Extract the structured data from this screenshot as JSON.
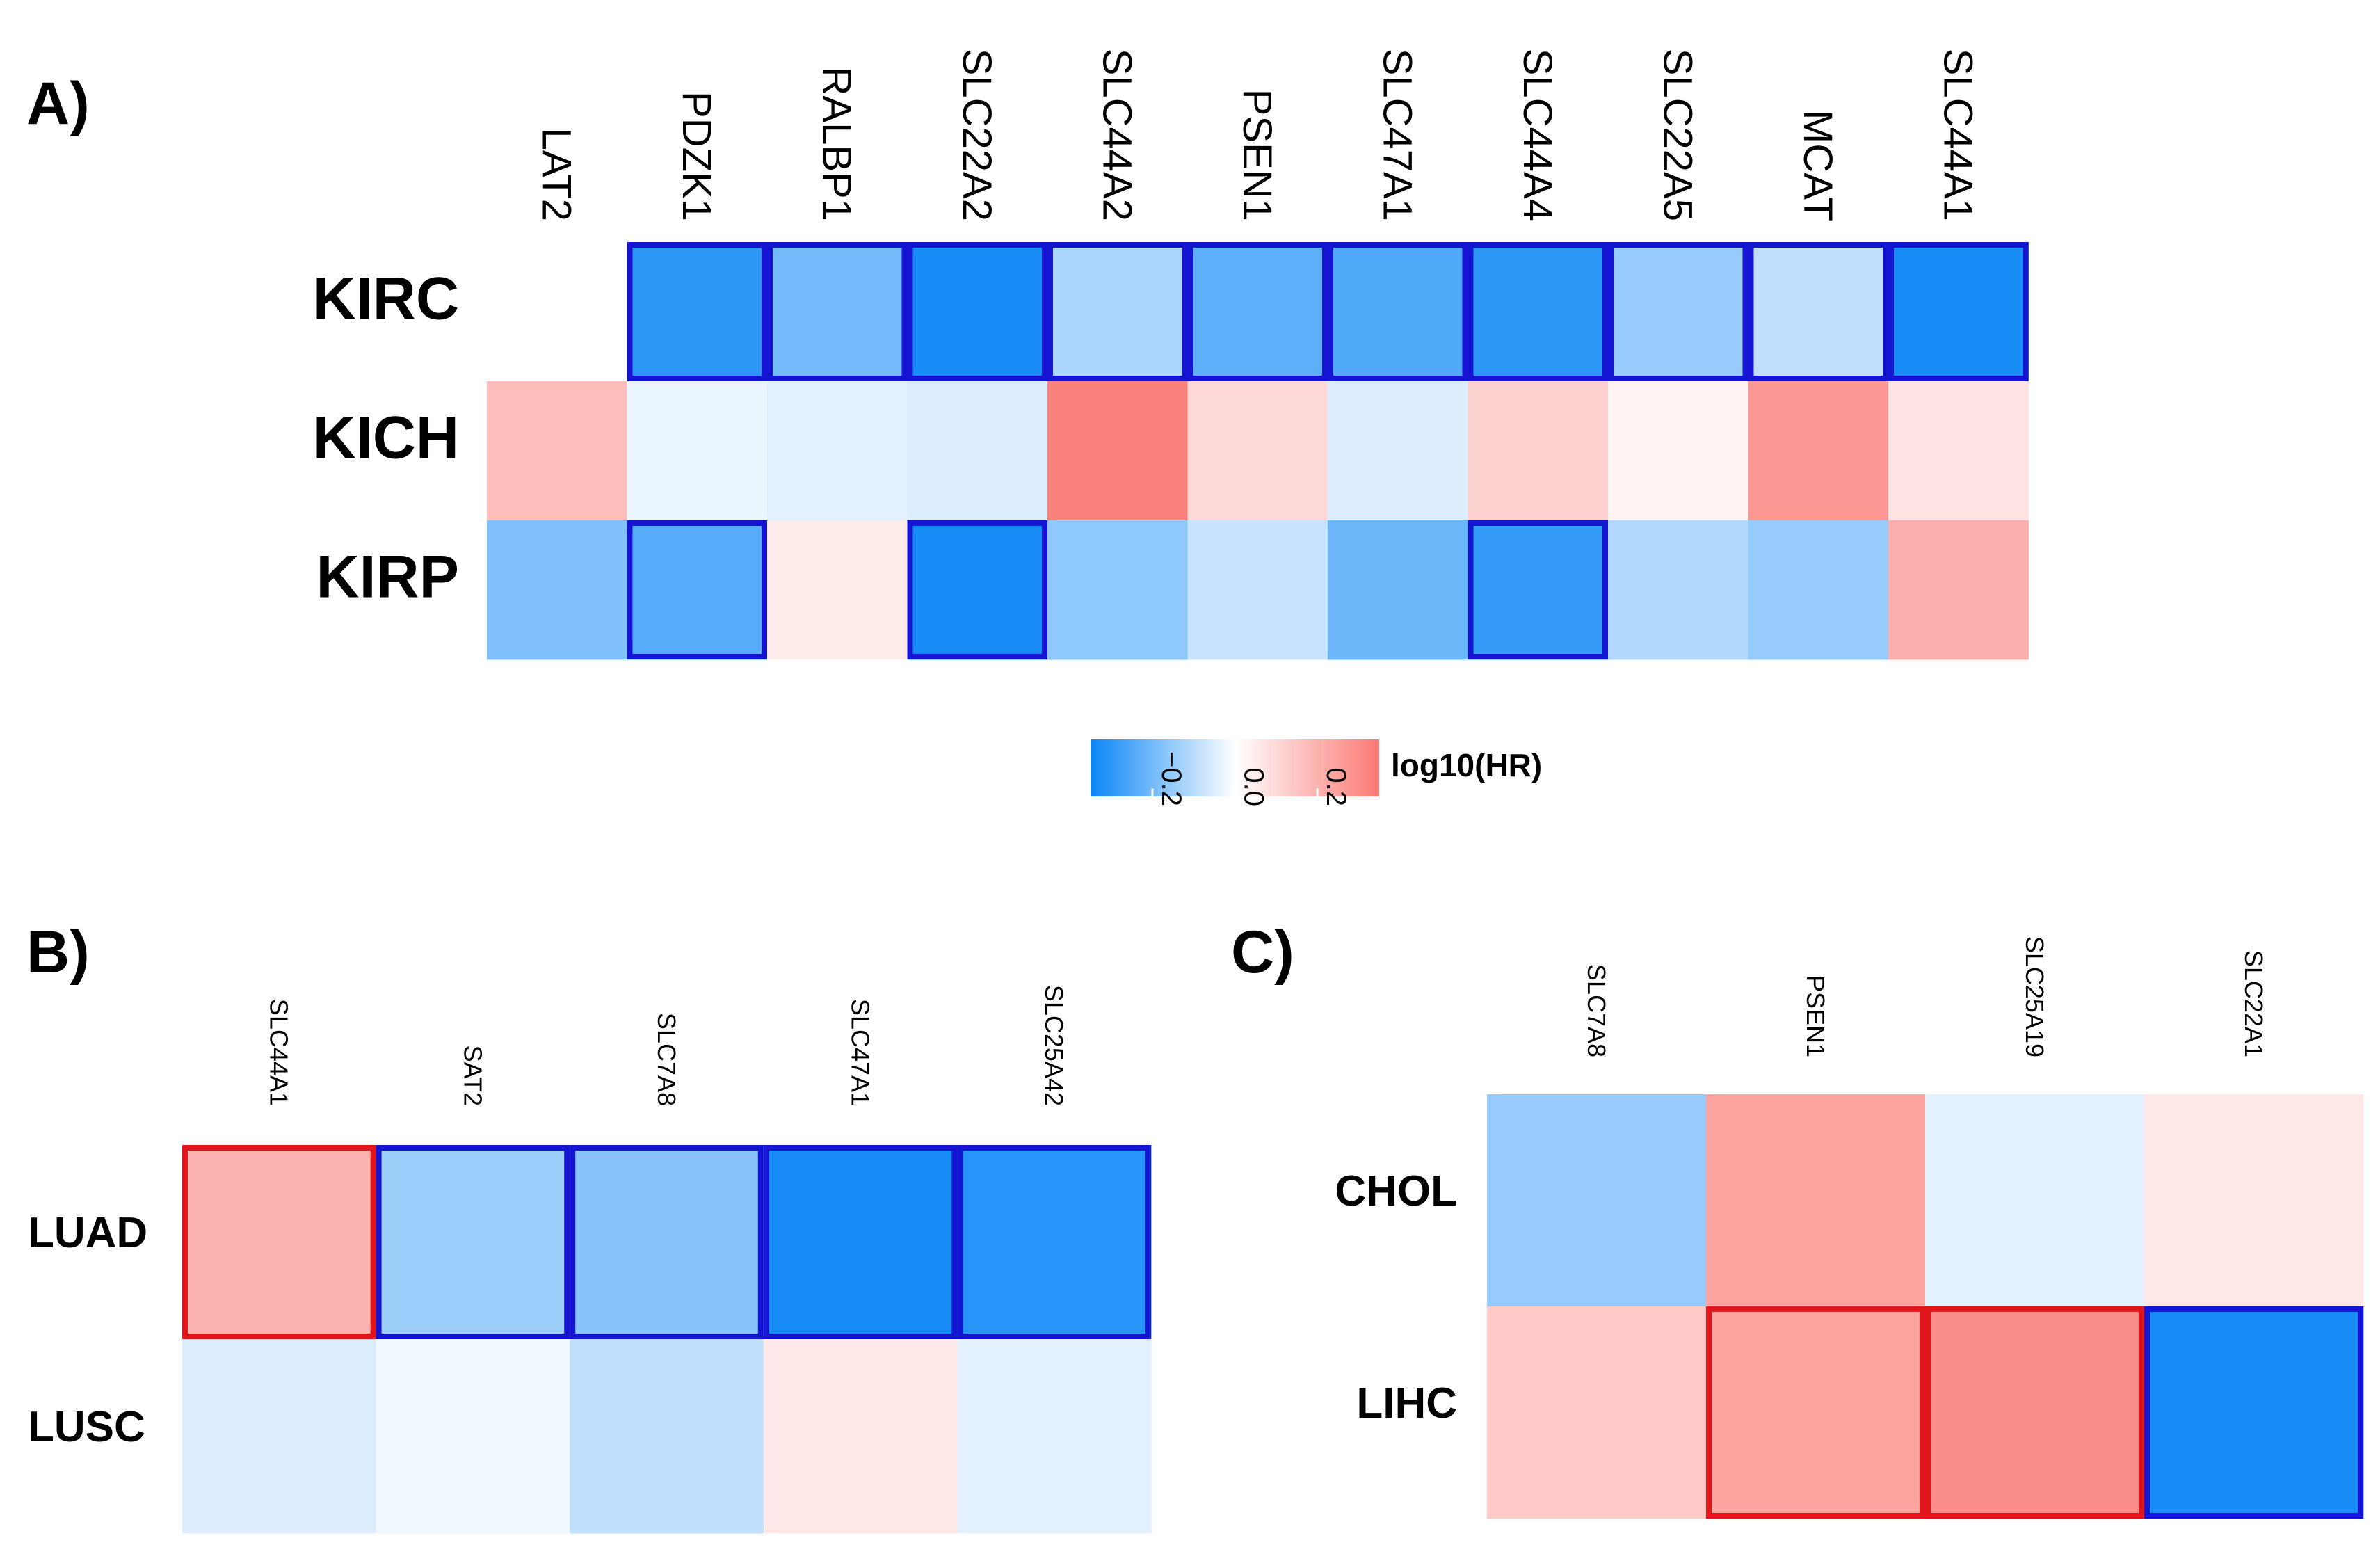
{
  "chart_data": [
    {
      "type": "heatmap",
      "panel_label": "A)",
      "columns": [
        "LAT2",
        "PDZK1",
        "RALBP1",
        "SLC22A2",
        "SLC44A2",
        "PSEN1",
        "SLC47A1",
        "SLC44A4",
        "SLC22A5",
        "MCAT",
        "SLC44A1"
      ],
      "rows": [
        "KIRC",
        "KICH",
        "KIRP"
      ],
      "values": [
        [
          null,
          -0.3,
          -0.2,
          -0.33,
          -0.12,
          -0.23,
          -0.25,
          -0.3,
          -0.15,
          -0.09,
          -0.33
        ],
        [
          0.17,
          -0.03,
          -0.04,
          -0.05,
          0.33,
          0.1,
          -0.05,
          0.12,
          0.03,
          0.27,
          0.07
        ],
        [
          -0.18,
          -0.24,
          0.05,
          -0.33,
          -0.16,
          -0.08,
          -0.21,
          -0.29,
          -0.11,
          -0.15,
          0.21
        ]
      ],
      "highlight": [
        [
          null,
          "blue",
          "blue",
          "blue",
          "blue",
          "blue",
          "blue",
          "blue",
          "blue",
          "blue",
          "blue"
        ],
        [
          null,
          null,
          null,
          null,
          null,
          null,
          null,
          null,
          null,
          null,
          null
        ],
        [
          null,
          "blue",
          null,
          "blue",
          null,
          null,
          null,
          "blue",
          null,
          null,
          null
        ]
      ]
    },
    {
      "type": "heatmap",
      "panel_label": "B)",
      "columns": [
        "SLC44A1",
        "SAT2",
        "SLC7A8",
        "SLC47A1",
        "SLC25A42"
      ],
      "rows": [
        "LUAD",
        "LUSC"
      ],
      "values": [
        [
          0.2,
          -0.14,
          -0.17,
          -0.33,
          -0.31
        ],
        [
          -0.05,
          -0.02,
          -0.09,
          0.06,
          -0.04
        ]
      ],
      "highlight": [
        [
          "red",
          "blue",
          "blue",
          "blue",
          "blue"
        ],
        [
          null,
          null,
          null,
          null,
          null
        ]
      ]
    },
    {
      "type": "heatmap",
      "panel_label": "C)",
      "columns": [
        "SLC7A8",
        "PSEN1",
        "SLC25A19",
        "SLC22A1"
      ],
      "rows": [
        "CHOL",
        "LIHC"
      ],
      "values": [
        [
          -0.15,
          0.24,
          -0.04,
          0.06
        ],
        [
          0.14,
          0.24,
          0.3,
          -0.33
        ]
      ],
      "highlight": [
        [
          null,
          null,
          null,
          null
        ],
        [
          null,
          "red",
          "red",
          "blue"
        ]
      ]
    }
  ],
  "colorbar": {
    "title": "log10(HR)",
    "min": -0.35,
    "max": 0.35,
    "ticks": [
      "−0.2",
      "0.0",
      "0.2"
    ],
    "tick_values": [
      -0.2,
      0.0,
      0.2
    ],
    "low_color": "#0a86f7",
    "mid_color": "#ffffff",
    "high_color": "#fa7a74"
  },
  "colors": {
    "blue_border": "#1414d2",
    "red_border": "#e0161c"
  }
}
